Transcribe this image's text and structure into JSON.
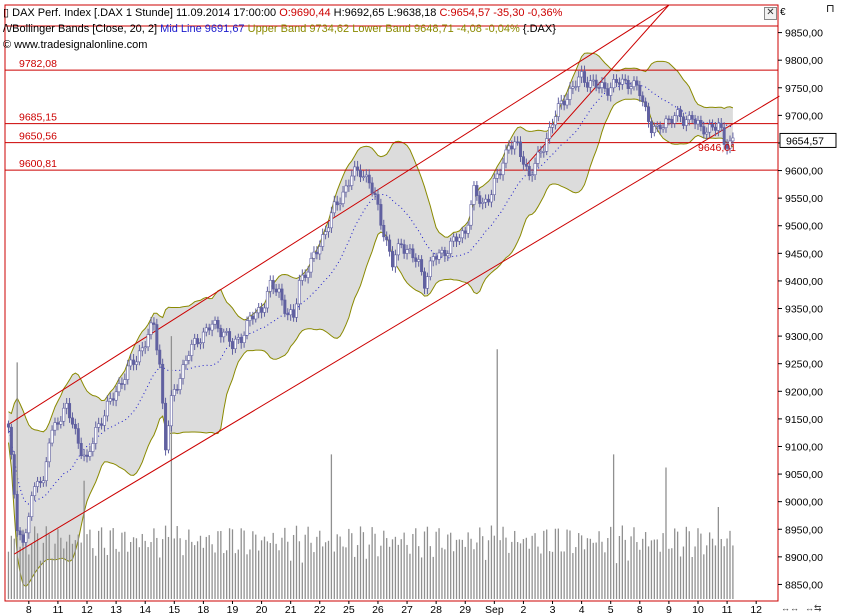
{
  "header": {
    "icon": "chart-bars-icon",
    "title": "DAX Perf. Index [.DAX  1 Stunde]",
    "datetime": "11.09.2014 17:00:00",
    "open": "O:9690,44",
    "high": "H:9692,65",
    "low": "L:9638,18",
    "close_change": "C:9654,57 -35,30 -0,36%",
    "bb_prefix": "/\\/Bollinger Bands [Close, 20, 2]",
    "mid_line": "Mid Line 9691,67",
    "upper_band": "Upper Band 9734,62",
    "lower_band": "Lower Band 9648,71 -4,08 -0,04%",
    "symbol": "{.DAX}",
    "copyright": "© www.tradesignalonline.com"
  },
  "colors": {
    "price": "#6060a0",
    "midline": "#1a1acc",
    "band": "#8a8a00",
    "band_fill": "#dcdcdc",
    "levels": "#cc0000",
    "volume": "#909090"
  },
  "chart_data": {
    "type": "candlestick",
    "title": "DAX Perf. Index [.DAX  1 Stunde]",
    "ylim": [
      8820,
      9900
    ],
    "y_ticks": [
      8850,
      8900,
      8950,
      9000,
      9050,
      9100,
      9150,
      9200,
      9250,
      9300,
      9350,
      9400,
      9450,
      9500,
      9550,
      9600,
      9650,
      9700,
      9750,
      9800,
      9850
    ],
    "x_ticks": [
      {
        "label": "8",
        "i": 7
      },
      {
        "label": "11",
        "i": 17
      },
      {
        "label": "12",
        "i": 27
      },
      {
        "label": "13",
        "i": 37
      },
      {
        "label": "14",
        "i": 47
      },
      {
        "label": "15",
        "i": 57
      },
      {
        "label": "18",
        "i": 67
      },
      {
        "label": "19",
        "i": 77
      },
      {
        "label": "20",
        "i": 87
      },
      {
        "label": "21",
        "i": 97
      },
      {
        "label": "22",
        "i": 107
      },
      {
        "label": "25",
        "i": 117
      },
      {
        "label": "26",
        "i": 127
      },
      {
        "label": "27",
        "i": 137
      },
      {
        "label": "28",
        "i": 147
      },
      {
        "label": "29",
        "i": 157
      },
      {
        "label": "Sep",
        "i": 167
      },
      {
        "label": "2",
        "i": 177
      },
      {
        "label": "3",
        "i": 187
      },
      {
        "label": "4",
        "i": 197
      },
      {
        "label": "5",
        "i": 207
      },
      {
        "label": "8",
        "i": 217
      },
      {
        "label": "9",
        "i": 227
      },
      {
        "label": "10",
        "i": 237
      },
      {
        "label": "11",
        "i": 247
      },
      {
        "label": "12",
        "i": 257
      }
    ],
    "bar_count": 250,
    "future_bars": 15,
    "horizontal_levels": [
      {
        "value": 9782.08,
        "label": "9782,08"
      },
      {
        "value": 9685.15,
        "label": "9685,15"
      },
      {
        "value": 9650.56,
        "label": "9650,56"
      },
      {
        "value": 9600.81,
        "label": "9600,81"
      },
      {
        "value": 9862,
        "label": ""
      }
    ],
    "trend_lines": [
      {
        "name": "upper",
        "from": [
          0,
          9140
        ],
        "to": [
          227,
          9900
        ]
      },
      {
        "name": "lower",
        "from": [
          2,
          8905
        ],
        "to": [
          265,
          9735
        ]
      },
      {
        "name": "inner",
        "from": [
          178,
          9610
        ],
        "to": [
          227,
          9900
        ]
      }
    ],
    "last_price": {
      "value": 9654.57,
      "label": "9654,57"
    },
    "low_marker": {
      "value": 9646.01,
      "label": "9646,01"
    },
    "anchors": [
      [
        0,
        9130
      ],
      [
        3,
        8960
      ],
      [
        5,
        8920
      ],
      [
        8,
        9000
      ],
      [
        10,
        9050
      ],
      [
        12,
        9030
      ],
      [
        14,
        9110
      ],
      [
        17,
        9150
      ],
      [
        20,
        9170
      ],
      [
        22,
        9140
      ],
      [
        24,
        9110
      ],
      [
        27,
        9070
      ],
      [
        30,
        9130
      ],
      [
        33,
        9160
      ],
      [
        36,
        9190
      ],
      [
        40,
        9230
      ],
      [
        44,
        9260
      ],
      [
        47,
        9290
      ],
      [
        50,
        9320
      ],
      [
        52,
        9250
      ],
      [
        54,
        9100
      ],
      [
        56,
        9180
      ],
      [
        59,
        9230
      ],
      [
        62,
        9270
      ],
      [
        66,
        9300
      ],
      [
        70,
        9320
      ],
      [
        74,
        9310
      ],
      [
        77,
        9280
      ],
      [
        80,
        9300
      ],
      [
        83,
        9330
      ],
      [
        87,
        9350
      ],
      [
        90,
        9390
      ],
      [
        93,
        9380
      ],
      [
        96,
        9340
      ],
      [
        98,
        9330
      ],
      [
        100,
        9400
      ],
      [
        104,
        9430
      ],
      [
        108,
        9480
      ],
      [
        112,
        9530
      ],
      [
        115,
        9560
      ],
      [
        118,
        9590
      ],
      [
        121,
        9600
      ],
      [
        124,
        9580
      ],
      [
        127,
        9530
      ],
      [
        130,
        9470
      ],
      [
        132,
        9430
      ],
      [
        135,
        9470
      ],
      [
        138,
        9450
      ],
      [
        141,
        9430
      ],
      [
        143,
        9400
      ],
      [
        146,
        9440
      ],
      [
        149,
        9450
      ],
      [
        153,
        9470
      ],
      [
        157,
        9490
      ],
      [
        160,
        9560
      ],
      [
        163,
        9540
      ],
      [
        166,
        9560
      ],
      [
        169,
        9600
      ],
      [
        172,
        9650
      ],
      [
        175,
        9640
      ],
      [
        177,
        9620
      ],
      [
        179,
        9590
      ],
      [
        182,
        9620
      ],
      [
        185,
        9660
      ],
      [
        188,
        9700
      ],
      [
        191,
        9730
      ],
      [
        194,
        9750
      ],
      [
        197,
        9770
      ],
      [
        200,
        9760
      ],
      [
        203,
        9750
      ],
      [
        206,
        9750
      ],
      [
        210,
        9760
      ],
      [
        214,
        9760
      ],
      [
        217,
        9740
      ],
      [
        219,
        9710
      ],
      [
        221,
        9680
      ],
      [
        223,
        9670
      ],
      [
        226,
        9690
      ],
      [
        229,
        9700
      ],
      [
        232,
        9690
      ],
      [
        235,
        9700
      ],
      [
        238,
        9670
      ],
      [
        241,
        9680
      ],
      [
        244,
        9680
      ],
      [
        246,
        9650
      ],
      [
        249,
        9655
      ]
    ],
    "volume_peaks": [
      {
        "i": 3,
        "h": 0.9
      },
      {
        "i": 26,
        "h": 0.45
      },
      {
        "i": 56,
        "h": 1.0
      },
      {
        "i": 111,
        "h": 0.55
      },
      {
        "i": 168,
        "h": 0.95
      },
      {
        "i": 208,
        "h": 0.55
      },
      {
        "i": 226,
        "h": 0.5
      },
      {
        "i": 244,
        "h": 0.35
      }
    ],
    "volume_max": 9300
  }
}
